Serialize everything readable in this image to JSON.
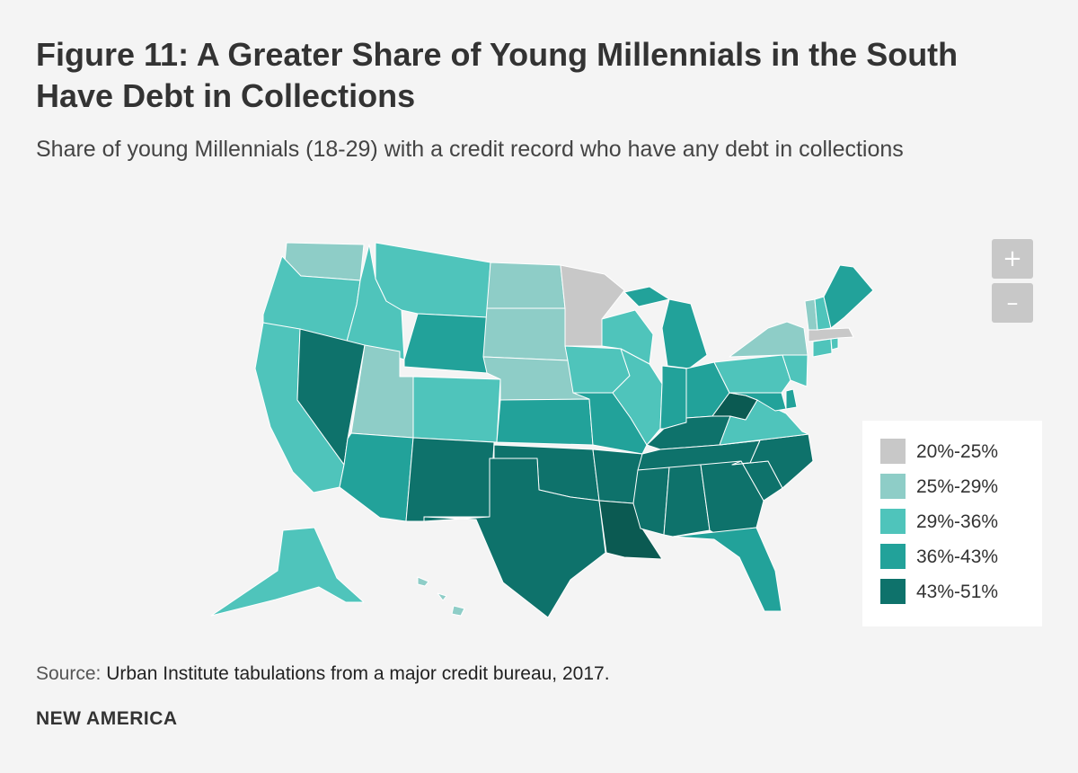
{
  "title": "Figure 11: A Greater Share of Young Millennials in the South Have Debt in Collections",
  "subtitle": "Share of young Millennials (18-29) with a credit record who have any debt in collections",
  "zoom": {
    "in_label": "+",
    "out_label": "–"
  },
  "legend": [
    {
      "label": "20%-25%",
      "color": "#c8c8c8"
    },
    {
      "label": "25%-29%",
      "color": "#8ecdc7"
    },
    {
      "label": "29%-36%",
      "color": "#4fc4bb"
    },
    {
      "label": "36%-43%",
      "color": "#22a29a"
    },
    {
      "label": "43%-51%",
      "color": "#0e726b"
    }
  ],
  "extra_colors": {
    "top_state": "#0b5a52"
  },
  "states": [
    {
      "abbr": "WA",
      "bin": 1
    },
    {
      "abbr": "OR",
      "bin": 2
    },
    {
      "abbr": "CA",
      "bin": 2
    },
    {
      "abbr": "ID",
      "bin": 2
    },
    {
      "abbr": "NV",
      "bin": 4
    },
    {
      "abbr": "UT",
      "bin": 1
    },
    {
      "abbr": "AZ",
      "bin": 3
    },
    {
      "abbr": "MT",
      "bin": 2
    },
    {
      "abbr": "WY",
      "bin": 3
    },
    {
      "abbr": "CO",
      "bin": 2
    },
    {
      "abbr": "NM",
      "bin": 4
    },
    {
      "abbr": "ND",
      "bin": 1
    },
    {
      "abbr": "SD",
      "bin": 1
    },
    {
      "abbr": "NE",
      "bin": 1
    },
    {
      "abbr": "KS",
      "bin": 3
    },
    {
      "abbr": "OK",
      "bin": 4
    },
    {
      "abbr": "TX",
      "bin": 4
    },
    {
      "abbr": "MN",
      "bin": 0
    },
    {
      "abbr": "IA",
      "bin": 2
    },
    {
      "abbr": "MO",
      "bin": 3
    },
    {
      "abbr": "AR",
      "bin": 4
    },
    {
      "abbr": "LA",
      "bin": 5
    },
    {
      "abbr": "WI",
      "bin": 2
    },
    {
      "abbr": "IL",
      "bin": 2
    },
    {
      "abbr": "MI",
      "bin": 3
    },
    {
      "abbr": "IN",
      "bin": 3
    },
    {
      "abbr": "OH",
      "bin": 3
    },
    {
      "abbr": "KY",
      "bin": 4
    },
    {
      "abbr": "TN",
      "bin": 4
    },
    {
      "abbr": "MS",
      "bin": 4
    },
    {
      "abbr": "AL",
      "bin": 4
    },
    {
      "abbr": "GA",
      "bin": 4
    },
    {
      "abbr": "FL",
      "bin": 3
    },
    {
      "abbr": "SC",
      "bin": 4
    },
    {
      "abbr": "NC",
      "bin": 4
    },
    {
      "abbr": "VA",
      "bin": 2
    },
    {
      "abbr": "WV",
      "bin": 5
    },
    {
      "abbr": "PA",
      "bin": 2
    },
    {
      "abbr": "NY",
      "bin": 1
    },
    {
      "abbr": "NJ",
      "bin": 2
    },
    {
      "abbr": "DE",
      "bin": 3
    },
    {
      "abbr": "MD",
      "bin": 3
    },
    {
      "abbr": "CT",
      "bin": 2
    },
    {
      "abbr": "RI",
      "bin": 2
    },
    {
      "abbr": "MA",
      "bin": 0
    },
    {
      "abbr": "VT",
      "bin": 1
    },
    {
      "abbr": "NH",
      "bin": 2
    },
    {
      "abbr": "ME",
      "bin": 3
    },
    {
      "abbr": "AK",
      "bin": 2
    },
    {
      "abbr": "HI",
      "bin": 1
    }
  ],
  "source": {
    "label": "Source:",
    "text": "Urban Institute tabulations from a major credit bureau, 2017."
  },
  "brand": "NEW AMERICA"
}
